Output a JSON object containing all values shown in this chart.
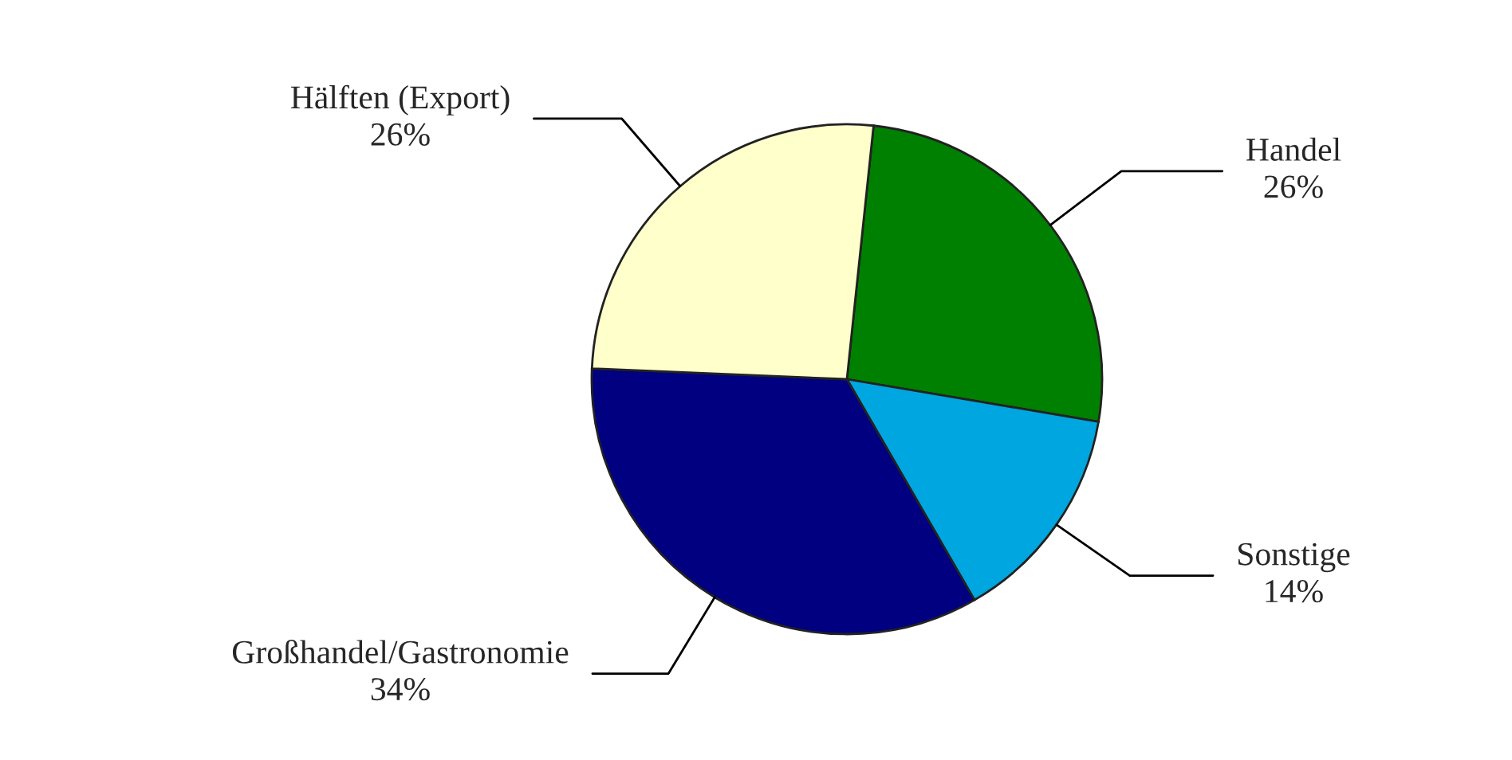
{
  "chart_data": {
    "type": "pie",
    "categories": [
      "Handel",
      "Sonstige",
      "Großhandel/Gastronomie",
      "Hälften (Export)"
    ],
    "values": [
      26,
      14,
      34,
      26
    ],
    "value_labels": [
      "26%",
      "14%",
      "34%",
      "26%"
    ],
    "colors": [
      "#008000",
      "#00a6e0",
      "#000080",
      "#ffffcc"
    ],
    "legend": false
  }
}
